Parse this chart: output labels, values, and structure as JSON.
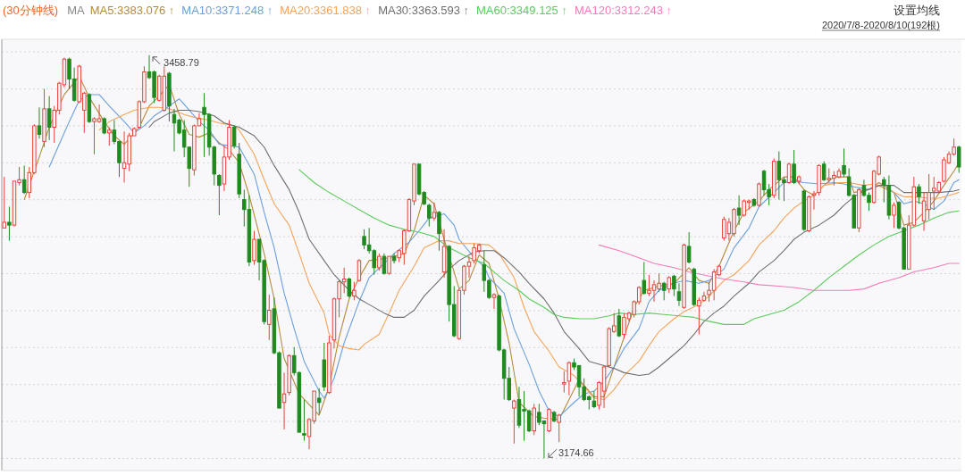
{
  "chart_data": {
    "type": "candlestick",
    "title": "(30分钟线)",
    "legend_title": "MA",
    "legend": "top left",
    "grid": "y",
    "ylim": [
      3166,
      3470
    ],
    "yticks": [
      {
        "value": 3174.5,
        "label": null
      },
      {
        "value": 3200.6,
        "label": null
      },
      {
        "value": 3226.6,
        "label": null
      },
      {
        "value": 3252.7,
        "label": null
      },
      {
        "value": 3278.7,
        "label": null
      },
      {
        "value": 3304.8,
        "label": null
      },
      {
        "value": 3330.8,
        "label": null
      },
      {
        "value": 3356.9,
        "label": null
      },
      {
        "value": 3382.9,
        "label": null
      },
      {
        "value": 3409.0,
        "label": null
      },
      {
        "value": 3435.0,
        "label": null
      },
      {
        "value": 3461.1,
        "label": null
      }
    ],
    "categories": [
      null,
      null,
      null,
      null,
      null,
      null,
      null,
      null,
      null,
      null,
      null,
      null,
      null,
      null,
      null,
      null,
      null,
      null,
      null,
      null,
      null,
      null,
      null,
      null,
      null,
      null,
      null,
      null,
      null,
      null,
      null,
      null,
      null,
      null,
      null,
      null,
      null,
      null,
      null,
      null,
      null,
      null,
      null,
      null,
      null,
      null,
      null,
      null,
      null,
      null,
      null,
      null,
      null,
      null,
      null,
      null,
      null,
      null,
      null,
      null,
      null,
      null,
      null,
      null,
      null,
      null,
      null,
      null,
      null,
      null,
      null,
      null,
      null,
      null,
      null,
      null,
      null,
      null,
      null,
      null,
      null,
      null,
      null,
      null,
      null,
      null,
      null,
      null,
      null,
      null,
      null,
      null,
      null,
      null,
      null,
      null,
      null,
      null,
      null,
      null,
      null,
      null,
      null,
      null,
      null,
      null,
      null,
      null,
      null,
      null,
      null,
      null,
      null,
      null,
      null,
      null,
      null,
      null,
      null,
      null,
      null,
      null,
      null,
      null,
      null,
      null,
      null,
      null,
      null,
      null,
      null,
      null,
      null,
      null,
      null,
      null,
      null,
      null,
      null,
      null,
      null,
      null,
      null,
      null,
      null,
      null,
      null,
      null,
      null,
      null,
      null,
      null,
      null,
      null,
      null,
      null,
      null,
      null,
      null,
      null,
      null,
      null,
      null,
      null,
      null,
      null,
      null,
      null,
      null,
      null,
      null,
      null,
      null,
      null,
      null,
      null,
      null,
      null,
      null,
      null,
      null,
      null,
      null,
      null,
      null,
      null,
      null,
      null,
      null,
      null,
      null,
      null
    ],
    "ohlc": [
      [
        3337,
        3373,
        3337,
        3341
      ],
      [
        3341,
        3352,
        3328,
        3339
      ],
      [
        3339,
        3370,
        3338,
        3370
      ],
      [
        3369,
        3380,
        3367,
        3371
      ],
      [
        3371,
        3381,
        3361,
        3362
      ],
      [
        3362,
        3380,
        3358,
        3376
      ],
      [
        3376,
        3410,
        3375,
        3409
      ],
      [
        3409,
        3422,
        3400,
        3403
      ],
      [
        3398,
        3435,
        3394,
        3421
      ],
      [
        3421,
        3430,
        3399,
        3408
      ],
      [
        3408,
        3423,
        3397,
        3420
      ],
      [
        3420,
        3440,
        3417,
        3439
      ],
      [
        3438,
        3457,
        3436,
        3456
      ],
      [
        3456,
        3457,
        3435,
        3442
      ],
      [
        3442,
        3450,
        3426,
        3427
      ],
      [
        3426,
        3452,
        3425,
        3451
      ],
      [
        3420,
        3433,
        3404,
        3432
      ],
      [
        3431,
        3432,
        3411,
        3412
      ],
      [
        3412,
        3415,
        3389,
        3414
      ],
      [
        3412,
        3424,
        3411,
        3414
      ],
      [
        3414,
        3415,
        3403,
        3404
      ],
      [
        3404,
        3408,
        3395,
        3406
      ],
      [
        3406,
        3413,
        3396,
        3398
      ],
      [
        3398,
        3398,
        3373,
        3383
      ],
      [
        3379,
        3405,
        3369,
        3383
      ],
      [
        3382,
        3404,
        3377,
        3402
      ],
      [
        3402,
        3408,
        3402,
        3407
      ],
      [
        3408,
        3427,
        3407,
        3426
      ],
      [
        3426,
        3451,
        3425,
        3447
      ],
      [
        3447,
        3458.79,
        3442,
        3443
      ],
      [
        3447,
        3448,
        3425,
        3429
      ],
      [
        3427,
        3445,
        3426,
        3444
      ],
      [
        3420,
        3451,
        3419,
        3444
      ],
      [
        3446,
        3447,
        3412,
        3423
      ],
      [
        3417,
        3421,
        3391,
        3411
      ],
      [
        3413,
        3414,
        3403,
        3404
      ],
      [
        3406,
        3413,
        3387,
        3394
      ],
      [
        3394,
        3394,
        3366,
        3379
      ],
      [
        3378,
        3410,
        3374,
        3409
      ],
      [
        3409,
        3418,
        3409,
        3414
      ],
      [
        3422,
        3432,
        3387,
        3417
      ],
      [
        3417,
        3418,
        3388,
        3394
      ],
      [
        3394,
        3395,
        3367,
        3375
      ],
      [
        3374,
        3375,
        3346,
        3367
      ],
      [
        3368,
        3395,
        3363,
        3387
      ],
      [
        3387,
        3413,
        3385,
        3408
      ],
      [
        3408,
        3409,
        3393,
        3395
      ],
      [
        3389,
        3397,
        3358,
        3361
      ],
      [
        3357,
        3364,
        3338,
        3350
      ],
      [
        3350,
        3360,
        3310,
        3313
      ],
      [
        3314,
        3335,
        3311,
        3329
      ],
      [
        3329,
        3329,
        3300,
        3313
      ],
      [
        3314,
        3315,
        3269,
        3271
      ],
      [
        3269,
        3290,
        3258,
        3279
      ],
      [
        3280,
        3288,
        3248,
        3249
      ],
      [
        3249,
        3250,
        3210,
        3210
      ],
      [
        3214,
        3235,
        3195,
        3220
      ],
      [
        3221,
        3248,
        3219,
        3247
      ],
      [
        3247,
        3253,
        3233,
        3235
      ],
      [
        3235,
        3236,
        3193,
        3193
      ],
      [
        3192,
        3216,
        3187,
        3191
      ],
      [
        3190,
        3203,
        3181,
        3202
      ],
      [
        3201,
        3222,
        3199,
        3222
      ],
      [
        3217,
        3224,
        3206,
        3214
      ],
      [
        3244,
        3256,
        3222,
        3225
      ],
      [
        3221,
        3261,
        3220,
        3256
      ],
      [
        3258,
        3288,
        3252,
        3287
      ],
      [
        3287,
        3300,
        3274,
        3299
      ],
      [
        3299,
        3309,
        3291,
        3301
      ],
      [
        3301,
        3302,
        3288,
        3289
      ],
      [
        3289,
        3299,
        3286,
        3293
      ],
      [
        3300,
        3315,
        3299,
        3314
      ],
      [
        3331,
        3336,
        3322,
        3325
      ],
      [
        3325,
        3337,
        3319,
        3321
      ],
      [
        3321,
        3322,
        3304,
        3309
      ],
      [
        3309,
        3319,
        3307,
        3317
      ],
      [
        3317,
        3319,
        3304,
        3305
      ],
      [
        3305,
        3317,
        3304,
        3317
      ],
      [
        3317,
        3319,
        3312,
        3314
      ],
      [
        3316,
        3322,
        3313,
        3321
      ],
      [
        3319,
        3336,
        3311,
        3335
      ],
      [
        3335,
        3358,
        3334,
        3357
      ],
      [
        3356,
        3382,
        3353,
        3382
      ],
      [
        3382,
        3382,
        3360,
        3361
      ],
      [
        3362,
        3363,
        3353,
        3354
      ],
      [
        3353,
        3354,
        3338,
        3344
      ],
      [
        3344,
        3355,
        3342,
        3348
      ],
      [
        3348,
        3349,
        3321,
        3333
      ],
      [
        3306,
        3336,
        3302,
        3324
      ],
      [
        3324,
        3325,
        3271,
        3283
      ],
      [
        3283,
        3296,
        3260,
        3261
      ],
      [
        3259,
        3294,
        3258,
        3293
      ],
      [
        3293,
        3311,
        3290,
        3310
      ],
      [
        3310,
        3317,
        3302,
        3313
      ],
      [
        3314,
        3326,
        3312,
        3323
      ],
      [
        3321,
        3326,
        3319,
        3325
      ],
      [
        3311,
        3321,
        3292,
        3300
      ],
      [
        3300,
        3301,
        3287,
        3288
      ],
      [
        3288,
        3291,
        3280,
        3290
      ],
      [
        3289,
        3290,
        3250,
        3251
      ],
      [
        3251,
        3252,
        3216,
        3231
      ],
      [
        3231,
        3239,
        3215,
        3216
      ],
      [
        3210,
        3216,
        3185,
        3215
      ],
      [
        3216,
        3225,
        3196,
        3198
      ],
      [
        3209,
        3222,
        3187,
        3208
      ],
      [
        3208,
        3209,
        3193,
        3194
      ],
      [
        3194,
        3213,
        3191,
        3210
      ],
      [
        3207,
        3213,
        3198,
        3200
      ],
      [
        3201,
        3201,
        3174.66,
        3199
      ],
      [
        3194,
        3210,
        3193,
        3209
      ],
      [
        3207,
        3208,
        3200,
        3201
      ],
      [
        3200,
        3206,
        3186,
        3205
      ],
      [
        3227,
        3236,
        3221,
        3228
      ],
      [
        3229,
        3243,
        3219,
        3242
      ],
      [
        3242,
        3245,
        3237,
        3239
      ],
      [
        3240,
        3240,
        3218,
        3225
      ],
      [
        3225,
        3231,
        3215,
        3216
      ],
      [
        3218,
        3219,
        3209,
        3216
      ],
      [
        3215,
        3222,
        3210,
        3211
      ],
      [
        3212,
        3229,
        3209,
        3228
      ],
      [
        3222,
        3240,
        3210,
        3239
      ],
      [
        3240,
        3267,
        3239,
        3266
      ],
      [
        3264,
        3277,
        3263,
        3268
      ],
      [
        3275,
        3280,
        3260,
        3261
      ],
      [
        3262,
        3277,
        3259,
        3274
      ],
      [
        3273,
        3278,
        3271,
        3277
      ],
      [
        3276,
        3286,
        3274,
        3285
      ],
      [
        3285,
        3296,
        3283,
        3295
      ],
      [
        3300,
        3313,
        3290,
        3291
      ],
      [
        3291,
        3304,
        3289,
        3293
      ],
      [
        3293,
        3300,
        3285,
        3297
      ],
      [
        3294,
        3305,
        3292,
        3298
      ],
      [
        3298,
        3299,
        3286,
        3293
      ],
      [
        3294,
        3303,
        3291,
        3302
      ],
      [
        3303,
        3304,
        3289,
        3294
      ],
      [
        3292,
        3298,
        3282,
        3286
      ],
      [
        3281,
        3326,
        3280,
        3325
      ],
      [
        3324,
        3334,
        3312,
        3313
      ],
      [
        3308,
        3309,
        3282,
        3283
      ],
      [
        3282,
        3288,
        3262,
        3286
      ],
      [
        3286,
        3292,
        3285,
        3289
      ],
      [
        3290,
        3299,
        3285,
        3293
      ],
      [
        3293,
        3308,
        3286,
        3306
      ],
      [
        3304,
        3311,
        3303,
        3310
      ],
      [
        3330,
        3345,
        3328,
        3343
      ],
      [
        3333,
        3344,
        3328,
        3341
      ],
      [
        3333,
        3351,
        3331,
        3350
      ],
      [
        3351,
        3360,
        3339,
        3346
      ],
      [
        3346,
        3357,
        3345,
        3356
      ],
      [
        3355,
        3357,
        3350,
        3356
      ],
      [
        3357,
        3358,
        3352,
        3353
      ],
      [
        3353,
        3369,
        3352,
        3368
      ],
      [
        3377,
        3378,
        3360,
        3364
      ],
      [
        3364,
        3368,
        3353,
        3359
      ],
      [
        3360,
        3386,
        3358,
        3384
      ],
      [
        3384,
        3391,
        3357,
        3371
      ],
      [
        3371,
        3373,
        3356,
        3369
      ],
      [
        3369,
        3383,
        3368,
        3382
      ],
      [
        3382,
        3392,
        3368,
        3369
      ],
      [
        3370,
        3374,
        3368,
        3373
      ],
      [
        3363,
        3364,
        3335,
        3336
      ],
      [
        3335,
        3360,
        3334,
        3359
      ],
      [
        3360,
        3363,
        3350,
        3361
      ],
      [
        3362,
        3382,
        3360,
        3381
      ],
      [
        3382,
        3384,
        3370,
        3371
      ],
      [
        3371,
        3379,
        3369,
        3372
      ],
      [
        3372,
        3377,
        3367,
        3374
      ],
      [
        3373,
        3379,
        3372,
        3377
      ],
      [
        3381,
        3393,
        3373,
        3375
      ],
      [
        3373,
        3379,
        3359,
        3360
      ],
      [
        3360,
        3361,
        3337,
        3337
      ],
      [
        3337,
        3365,
        3334,
        3364
      ],
      [
        3367,
        3371,
        3359,
        3360
      ],
      [
        3360,
        3362,
        3349,
        3355
      ],
      [
        3355,
        3378,
        3354,
        3377
      ],
      [
        3375,
        3388,
        3374,
        3387
      ],
      [
        3371,
        3373,
        3355,
        3367
      ],
      [
        3367,
        3374,
        3343,
        3346
      ],
      [
        3346,
        3355,
        3337,
        3353
      ],
      [
        3355,
        3356,
        3336,
        3337
      ],
      [
        3337,
        3338,
        3308,
        3308
      ],
      [
        3308,
        3346,
        3308,
        3339
      ],
      [
        3339,
        3373,
        3338,
        3366
      ],
      [
        3366,
        3368,
        3354,
        3359
      ],
      [
        3342,
        3362,
        3335,
        3356
      ],
      [
        3350,
        3375,
        3343,
        3362
      ],
      [
        3363,
        3373,
        3350,
        3365
      ],
      [
        3363,
        3370,
        3362,
        3369
      ],
      [
        3370,
        3387,
        3369,
        3385
      ],
      [
        3383,
        3391,
        3382,
        3389
      ],
      [
        3389,
        3400,
        3388,
        3394
      ],
      [
        3394,
        3395,
        3376,
        3380
      ]
    ],
    "series": [
      {
        "name": "MA5:3383.076 ↑",
        "type": "line",
        "color": "#b58a3c",
        "values": [
          null,
          null,
          null,
          null,
          3357,
          null,
          null,
          3387,
          null,
          3408,
          null,
          null,
          3431,
          null,
          null,
          3444,
          null,
          3429,
          null,
          null,
          3412,
          null,
          3402,
          null,
          3396,
          null,
          null,
          3408,
          null,
          3423,
          null,
          3430,
          null,
          3438,
          null,
          3417,
          null,
          3403,
          null,
          3401,
          null,
          3404,
          null,
          3397,
          null,
          3392,
          null,
          3383,
          null,
          3360,
          null,
          null,
          3319,
          null,
          3287,
          null,
          3245,
          null,
          null,
          3220,
          null,
          null,
          null,
          3205,
          null,
          3225,
          null,
          3260,
          null,
          3287,
          null,
          3302,
          null,
          3314,
          null,
          null,
          null,
          3316,
          null,
          null,
          3319,
          null,
          3335,
          null,
          3360,
          null,
          3354,
          null,
          3329,
          null,
          3306,
          3294,
          null,
          3300,
          null,
          3318,
          null,
          3312,
          null,
          3287,
          null,
          3256,
          null,
          3214,
          null,
          null,
          3204,
          null,
          3203,
          null,
          null,
          3202,
          null,
          3216,
          null,
          3230,
          null,
          null,
          3218,
          null,
          3218,
          null,
          null,
          null,
          null,
          null,
          3281,
          null,
          3293,
          null,
          null,
          3296,
          null,
          null,
          3298,
          null,
          null,
          3309,
          null,
          3300,
          null,
          3298,
          null,
          3310,
          null,
          null,
          3335,
          null,
          3348,
          null,
          null,
          3356,
          null,
          3364,
          null,
          null,
          3373,
          null,
          3373,
          null,
          3364,
          null,
          3360,
          null,
          3367,
          null,
          3373,
          null,
          null,
          3373,
          3362,
          null,
          null,
          3364,
          null,
          3369,
          3367,
          null,
          3362,
          null,
          3339,
          null,
          3341,
          null,
          3348,
          null,
          3356,
          null,
          3367,
          null,
          3377,
          3383
        ]
      },
      {
        "name": "MA10:3371.248 ↑",
        "type": "line",
        "color": "#6a9fdc",
        "values": [
          null,
          null,
          null,
          null,
          null,
          null,
          null,
          null,
          null,
          3380,
          null,
          3396,
          null,
          3412,
          null,
          3427,
          null,
          3431,
          null,
          3431,
          null,
          3423,
          null,
          null,
          3412,
          null,
          3404,
          null,
          3409,
          null,
          3416,
          null,
          null,
          3423,
          null,
          3428,
          null,
          3420,
          null,
          3412,
          null,
          3406,
          null,
          3396,
          null,
          3395,
          null,
          3394,
          null,
          null,
          3375,
          null,
          3348,
          null,
          3323,
          null,
          3291,
          null,
          3266,
          null,
          3243,
          null,
          null,
          3222,
          3217,
          null,
          3231,
          null,
          3256,
          null,
          null,
          3285,
          null,
          3302,
          null,
          null,
          3312,
          null,
          3319,
          null,
          null,
          3327,
          null,
          3335,
          null,
          3344,
          null,
          null,
          3347,
          null,
          3339,
          3329,
          null,
          null,
          3316,
          null,
          3310,
          3302,
          null,
          null,
          3291,
          null,
          3266,
          null,
          null,
          3241,
          null,
          3222,
          null,
          3208,
          null,
          3204,
          null,
          null,
          3214,
          null,
          3220,
          null,
          3222,
          null,
          3229,
          null,
          3239,
          null,
          3252,
          null,
          null,
          3266,
          null,
          3285,
          null,
          3293,
          null,
          null,
          3298,
          null,
          3300,
          null,
          null,
          3298,
          null,
          3300,
          null,
          null,
          3308,
          null,
          3323,
          null,
          null,
          3337,
          null,
          3352,
          null,
          null,
          3362,
          null,
          3369,
          null,
          3370,
          null,
          3369,
          null,
          null,
          3368,
          null,
          null,
          3369,
          null,
          3368,
          null,
          3366,
          null,
          null,
          3364,
          null,
          3367,
          null,
          null,
          3362,
          null,
          3354,
          null,
          3356,
          null,
          3354,
          null,
          3350,
          null,
          3356,
          null,
          3369,
          3371
        ]
      },
      {
        "name": "MA20:3361.838 ↑",
        "type": "line",
        "color": "#f5a35a",
        "values": [
          null,
          null,
          null,
          null,
          null,
          null,
          null,
          null,
          null,
          null,
          null,
          null,
          null,
          null,
          null,
          null,
          null,
          null,
          null,
          3406,
          null,
          3412,
          null,
          null,
          3417,
          null,
          3420,
          null,
          null,
          3422,
          null,
          3422,
          null,
          3421,
          null,
          null,
          3417,
          null,
          3415,
          null,
          null,
          3413,
          null,
          3411,
          null,
          null,
          3409,
          3406,
          null,
          null,
          3389,
          null,
          3371,
          null,
          3354,
          null,
          null,
          3339,
          null,
          3319,
          null,
          3298,
          null,
          null,
          3277,
          3262,
          null,
          3254,
          null,
          3252,
          null,
          3251,
          3255,
          null,
          null,
          3262,
          null,
          3277,
          null,
          3293,
          null,
          null,
          3310,
          null,
          3323,
          null,
          null,
          3328,
          null,
          3328,
          null,
          3326,
          null,
          null,
          3326,
          null,
          null,
          3325,
          null,
          3319,
          null,
          null,
          3302,
          null,
          3281,
          null,
          3264,
          null,
          null,
          3250,
          null,
          3239,
          null,
          null,
          3233,
          null,
          3225,
          null,
          3217,
          null,
          3216,
          null,
          3223,
          null,
          3233,
          null,
          null,
          3243,
          null,
          3254,
          null,
          3264,
          null,
          null,
          3273,
          null,
          3278,
          null,
          null,
          3283,
          null,
          3289,
          null,
          null,
          3300,
          null,
          3304,
          null,
          null,
          3314,
          null,
          3325,
          null,
          null,
          3335,
          null,
          3344,
          null,
          3351,
          null,
          3356,
          null,
          3360,
          null,
          3367,
          null,
          null,
          3369,
          null,
          3369,
          null,
          null,
          3367,
          null,
          3368,
          null,
          3365,
          null,
          3362,
          null,
          3359,
          null,
          3359,
          null,
          null,
          3358,
          null,
          3358,
          null,
          null,
          3361,
          3362
        ]
      },
      {
        "name": "MA30:3363.593 ↑",
        "type": "line",
        "color": "#6e6e6e",
        "values": [
          null,
          null,
          null,
          null,
          null,
          null,
          null,
          null,
          null,
          null,
          null,
          null,
          null,
          null,
          null,
          null,
          null,
          null,
          null,
          null,
          null,
          null,
          null,
          null,
          null,
          null,
          null,
          null,
          null,
          3408,
          3412,
          null,
          null,
          3418,
          null,
          3420,
          null,
          3420,
          null,
          3419,
          null,
          null,
          3416,
          null,
          3411,
          null,
          null,
          3408,
          null,
          null,
          3402,
          null,
          3394,
          null,
          3381,
          null,
          null,
          3364,
          null,
          3348,
          null,
          3329,
          null,
          null,
          3314,
          null,
          3304,
          null,
          null,
          3293,
          null,
          3287,
          null,
          3283,
          null,
          null,
          3277,
          null,
          3274,
          null,
          3274,
          null,
          3279,
          null,
          3289,
          null,
          null,
          3300,
          null,
          3308,
          null,
          3314,
          null,
          null,
          3320,
          null,
          3321,
          null,
          3321,
          null,
          3316,
          null,
          null,
          3306,
          null,
          3298,
          null,
          null,
          3287,
          null,
          3277,
          null,
          3264,
          null,
          null,
          3252,
          null,
          3243,
          null,
          null,
          3240,
          null,
          3238,
          null,
          3235,
          null,
          null,
          3233,
          null,
          3234,
          null,
          3239,
          null,
          3245,
          null,
          null,
          3254,
          null,
          3262,
          null,
          3271,
          null,
          3277,
          null,
          3282,
          null,
          3289,
          null,
          null,
          3298,
          null,
          3306,
          null,
          null,
          3314,
          null,
          3321,
          null,
          3329,
          null,
          3334,
          null,
          null,
          3339,
          null,
          null,
          3346,
          null,
          3353,
          null,
          3359,
          null,
          3363,
          null,
          null,
          3367,
          null,
          null,
          3367,
          null,
          3362,
          null,
          3362,
          null,
          null,
          3362,
          null,
          3362,
          null,
          null,
          3363,
          3364
        ]
      },
      {
        "name": "MA60:3349.125 ↑",
        "type": "line",
        "color": "#5ccb5c",
        "values": [
          null,
          null,
          null,
          null,
          null,
          null,
          null,
          null,
          null,
          null,
          null,
          null,
          null,
          null,
          null,
          null,
          null,
          null,
          null,
          null,
          null,
          null,
          null,
          null,
          null,
          null,
          null,
          null,
          null,
          null,
          null,
          null,
          null,
          null,
          null,
          null,
          null,
          null,
          null,
          null,
          null,
          null,
          null,
          null,
          null,
          null,
          null,
          null,
          null,
          null,
          null,
          null,
          null,
          null,
          null,
          null,
          null,
          null,
          null,
          3378,
          null,
          null,
          3369,
          null,
          null,
          3362,
          null,
          null,
          3356,
          null,
          null,
          3350,
          null,
          null,
          3344,
          null,
          null,
          3339,
          null,
          null,
          3336,
          null,
          null,
          3334,
          null,
          null,
          3331,
          null,
          null,
          3323,
          null,
          null,
          null,
          3316,
          null,
          null,
          3312,
          null,
          3306,
          null,
          3300,
          null,
          null,
          3293,
          null,
          3287,
          null,
          null,
          3281,
          null,
          3276,
          null,
          3274,
          null,
          null,
          3273,
          null,
          null,
          3273,
          null,
          null,
          3275,
          null,
          3277,
          null,
          null,
          3276,
          null,
          null,
          3277,
          null,
          null,
          3276,
          null,
          null,
          3275,
          null,
          null,
          3274,
          null,
          3272,
          null,
          null,
          null,
          3269,
          null,
          null,
          null,
          3269,
          null,
          3273,
          null,
          null,
          3276,
          null,
          null,
          3279,
          null,
          null,
          3285,
          null,
          null,
          3293,
          null,
          null,
          3302,
          null,
          null,
          3310,
          null,
          null,
          3318,
          null,
          null,
          3325,
          null,
          null,
          3331,
          null,
          null,
          3335,
          null,
          null,
          3339,
          null,
          null,
          3344,
          null,
          null,
          3348,
          null,
          3349
        ]
      },
      {
        "name": "MA120:3312.243 ↑",
        "type": "line",
        "color": "#f27bb8",
        "values": [
          null,
          null,
          null,
          null,
          null,
          null,
          null,
          null,
          null,
          null,
          null,
          null,
          null,
          null,
          null,
          null,
          null,
          null,
          null,
          null,
          null,
          null,
          null,
          null,
          null,
          null,
          null,
          null,
          null,
          null,
          null,
          null,
          null,
          null,
          null,
          null,
          null,
          null,
          null,
          null,
          null,
          null,
          null,
          null,
          null,
          null,
          null,
          null,
          null,
          null,
          null,
          null,
          null,
          null,
          null,
          null,
          null,
          null,
          null,
          null,
          null,
          null,
          null,
          null,
          null,
          null,
          null,
          null,
          null,
          null,
          null,
          null,
          null,
          null,
          null,
          null,
          null,
          null,
          null,
          null,
          null,
          null,
          null,
          null,
          null,
          null,
          null,
          null,
          null,
          null,
          null,
          null,
          null,
          null,
          null,
          null,
          null,
          null,
          null,
          null,
          null,
          null,
          null,
          null,
          null,
          null,
          null,
          null,
          null,
          null,
          null,
          null,
          null,
          null,
          null,
          null,
          null,
          null,
          null,
          3325,
          null,
          null,
          null,
          3321,
          null,
          null,
          null,
          3316,
          null,
          null,
          3312,
          null,
          null,
          null,
          3309,
          null,
          null,
          3306,
          null,
          null,
          null,
          3303,
          null,
          null,
          3301,
          null,
          null,
          null,
          3299,
          null,
          null,
          3297,
          null,
          null,
          null,
          3296,
          null,
          null,
          3295,
          null,
          null,
          null,
          3293,
          null,
          null,
          null,
          3293,
          null,
          null,
          3293,
          null,
          null,
          3294,
          null,
          null,
          3298,
          null,
          null,
          null,
          3302,
          null,
          null,
          3306,
          null,
          null,
          null,
          3309,
          null,
          null,
          3312,
          null,
          3312
        ]
      }
    ],
    "annotations": [
      "设置均线",
      "2020/7/8-2020/8/10(192根)",
      "3458.79",
      "3174.66"
    ]
  }
}
